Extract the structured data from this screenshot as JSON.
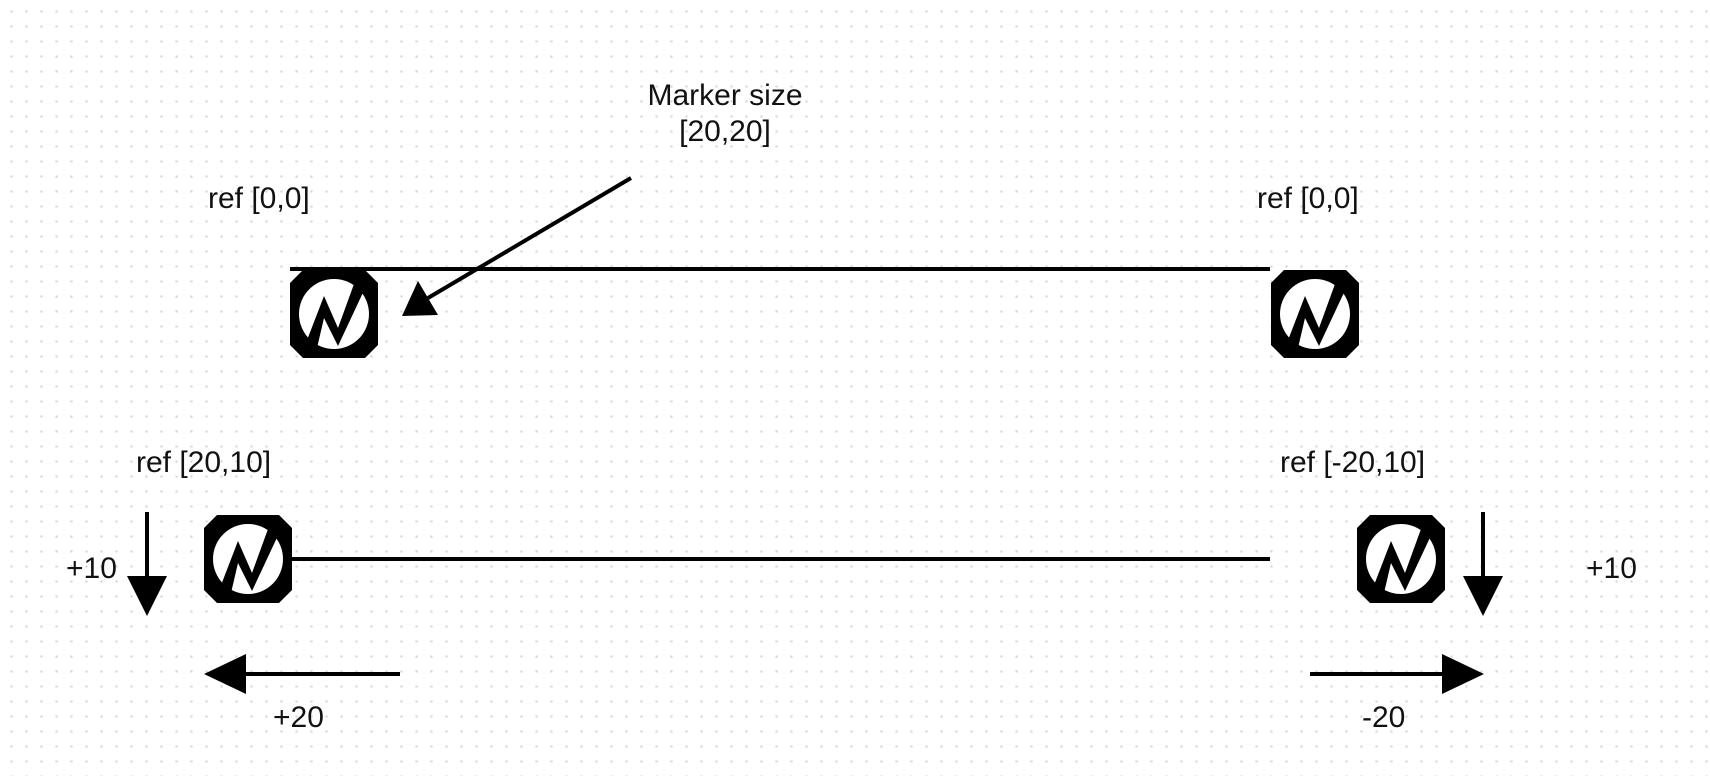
{
  "diagram": {
    "callout": {
      "title": "Marker size",
      "value": "[20,20]"
    },
    "labels": {
      "top_left_ref": "ref [0,0]",
      "top_right_ref": "ref [0,0]",
      "bottom_left_ref": "ref [20,10]",
      "bottom_right_ref": "ref [-20,10]",
      "left_vertical_offset": "+10",
      "right_vertical_offset": "+10",
      "left_horizontal_offset": "+20",
      "right_horizontal_offset": "-20"
    },
    "marker_icon": "lightning-bolt-marker-icon",
    "colors": {
      "stroke": "#000000",
      "grid_dot": "#d4d4d4",
      "background": "#ffffff"
    }
  }
}
